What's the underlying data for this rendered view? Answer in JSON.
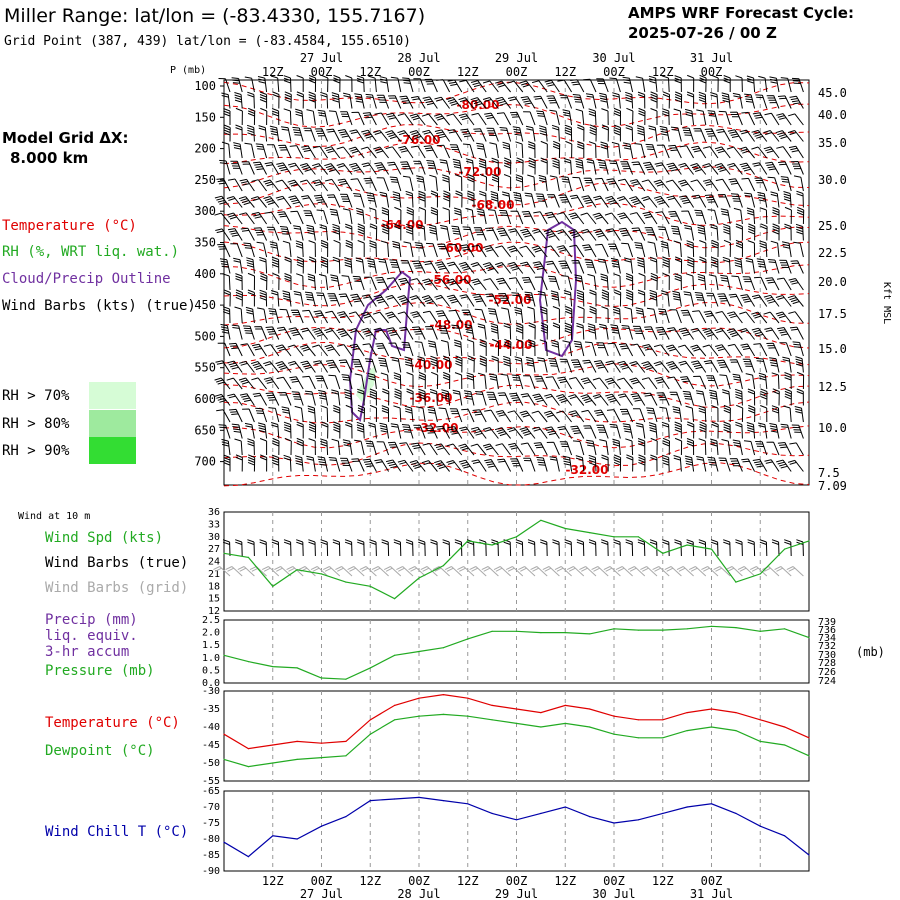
{
  "header": {
    "title": "Miller Range:  lat/lon = (-83.4330, 155.7167)",
    "grid_point": "Grid Point (387, 439) lat/lon = (-83.4584, 155.6510)",
    "cycle_line1": "AMPS WRF Forecast Cycle:",
    "cycle_line2": "2025-07-26 / 00  Z"
  },
  "left_panel": {
    "model_grid_label": "Model Grid ΔX:",
    "model_grid_value": "8.000 km",
    "temperature_label": "Temperature (°C)",
    "rh_label": "RH (%, WRT liq. wat.)",
    "cloud_label": "Cloud/Precip Outline",
    "wind_label": "Wind Barbs (kts) (true)",
    "rh70": "RH > 70%",
    "rh80": "RH > 80%",
    "rh90": "RH > 90%",
    "rh_colors": [
      "#d6fcd6",
      "#9eea9e",
      "#33dd33"
    ],
    "wind10m": "Wind at 10 m",
    "wind_spd": "Wind Spd (kts)",
    "wind_barbs_true": "Wind Barbs (true)",
    "wind_barbs_grid": "Wind Barbs (grid)",
    "precip1": "Precip (mm)",
    "precip2": "liq. equiv.",
    "precip3": "3-hr accum",
    "pressure_label": "Pressure (mb)",
    "temp_label2": "Temperature (°C)",
    "dewpoint_label": "Dewpoint (°C)",
    "windchill_label": "Wind Chill T (°C)",
    "colors": {
      "red": "#e00000",
      "green": "#22aa22",
      "purple": "#7030a0",
      "blue": "#0000aa",
      "grey": "#aaaaaa"
    }
  },
  "axes": {
    "p_label": "P (mb)",
    "kft_label": "Kft MSL",
    "mb_label": "(mb)",
    "time_top": [
      "12Z",
      "00Z",
      "12Z",
      "00Z",
      "12Z",
      "00Z",
      "12Z",
      "00Z",
      "12Z",
      "00Z"
    ],
    "dates": [
      "27 Jul",
      "28 Jul",
      "29 Jul",
      "30 Jul",
      "31 Jul"
    ],
    "pressure_ticks": [
      "100",
      "150",
      "200",
      "250",
      "300",
      "350",
      "400",
      "450",
      "500",
      "550",
      "600",
      "650",
      "700"
    ],
    "height_ticks": [
      "45.0",
      "40.0",
      "35.0",
      "30.0",
      "25.0",
      "22.5",
      "20.0",
      "17.5",
      "15.0",
      "12.5",
      "10.0",
      "7.5",
      "7.09"
    ],
    "wind_ticks": [
      "36",
      "33",
      "30",
      "27",
      "24",
      "21",
      "18",
      "15",
      "12"
    ],
    "precip_ticks": [
      "2.5",
      "2.0",
      "1.5",
      "1.0",
      "0.5",
      "0.0"
    ],
    "pres_ticks": [
      "739",
      "736",
      "734",
      "732",
      "730",
      "728",
      "726",
      "724"
    ],
    "temp_ticks": [
      "-30",
      "-35",
      "-40",
      "-45",
      "-50",
      "-55"
    ],
    "chill_ticks": [
      "-65",
      "-70",
      "-75",
      "-80",
      "-85",
      "-90"
    ]
  },
  "isotherm_labels": [
    "-80.00",
    "-76.00",
    "-72.00",
    "-68.00",
    "-64.00",
    "-60.00",
    "-56.00",
    "-52.00",
    "-48.00",
    "-44.00",
    "-40.00",
    "-36.00",
    "-32.00",
    "-32.00"
  ],
  "chart_data": [
    {
      "type": "line",
      "title": "Wind Spd (kts)",
      "x": [
        0,
        6,
        12,
        18,
        24,
        30,
        36,
        42,
        48,
        54,
        60,
        66,
        72,
        78,
        84,
        90,
        96,
        102,
        108,
        114,
        120,
        126,
        132,
        138,
        144
      ],
      "series": [
        {
          "name": "Wind Spd (kts)",
          "values": [
            26,
            25,
            18,
            22,
            21,
            19,
            18,
            15,
            20,
            23,
            29,
            28,
            30,
            34,
            32,
            31,
            30,
            30,
            26,
            28,
            27,
            19,
            21,
            27,
            29
          ]
        }
      ],
      "ylim": [
        12,
        36
      ]
    },
    {
      "type": "line",
      "title": "Precip (mm) / Pressure (mb)",
      "x": [
        0,
        6,
        12,
        18,
        24,
        30,
        36,
        42,
        48,
        54,
        60,
        66,
        72,
        78,
        84,
        90,
        96,
        102,
        108,
        114,
        120,
        126,
        132,
        138,
        144
      ],
      "series": [
        {
          "name": "Pressure (mb)",
          "values": [
            1.1,
            0.85,
            0.65,
            0.6,
            0.2,
            0.15,
            0.6,
            1.1,
            1.25,
            1.4,
            1.75,
            2.05,
            2.05,
            2.0,
            2.0,
            1.95,
            2.15,
            2.1,
            2.1,
            2.15,
            2.25,
            2.2,
            2.05,
            2.15,
            1.8
          ]
        }
      ],
      "ylim": [
        0,
        2.5
      ]
    },
    {
      "type": "line",
      "title": "Temperature / Dewpoint (°C)",
      "x": [
        0,
        6,
        12,
        18,
        24,
        30,
        36,
        42,
        48,
        54,
        60,
        66,
        72,
        78,
        84,
        90,
        96,
        102,
        108,
        114,
        120,
        126,
        132,
        138,
        144
      ],
      "series": [
        {
          "name": "Temperature (°C)",
          "values": [
            -42,
            -46,
            -45,
            -44,
            -44.5,
            -44,
            -38,
            -34,
            -32,
            -31,
            -32,
            -34,
            -35,
            -36,
            -34,
            -35,
            -37,
            -38,
            -38,
            -36,
            -35,
            -36,
            -38,
            -40,
            -43
          ]
        },
        {
          "name": "Dewpoint (°C)",
          "values": [
            -49,
            -51,
            -50,
            -49,
            -48.5,
            -48,
            -42,
            -38,
            -37,
            -36.5,
            -37,
            -38,
            -39,
            -40,
            -39,
            -40,
            -42,
            -43,
            -43,
            -41,
            -40,
            -41,
            -44,
            -45,
            -48
          ]
        }
      ],
      "ylim": [
        -55,
        -30
      ]
    },
    {
      "type": "line",
      "title": "Wind Chill T (°C)",
      "x": [
        0,
        6,
        12,
        18,
        24,
        30,
        36,
        42,
        48,
        54,
        60,
        66,
        72,
        78,
        84,
        90,
        96,
        102,
        108,
        114,
        120,
        126,
        132,
        138,
        144
      ],
      "series": [
        {
          "name": "Wind Chill T (°C)",
          "values": [
            -81,
            -85.5,
            -79,
            -80,
            -76,
            -73,
            -68,
            -67.5,
            -67,
            -68,
            -69,
            -72,
            -74,
            -72,
            -70,
            -73,
            -75,
            -74,
            -72,
            -70,
            -69,
            -72,
            -76,
            -79,
            -85
          ]
        }
      ],
      "ylim": [
        -90,
        -65
      ]
    }
  ]
}
